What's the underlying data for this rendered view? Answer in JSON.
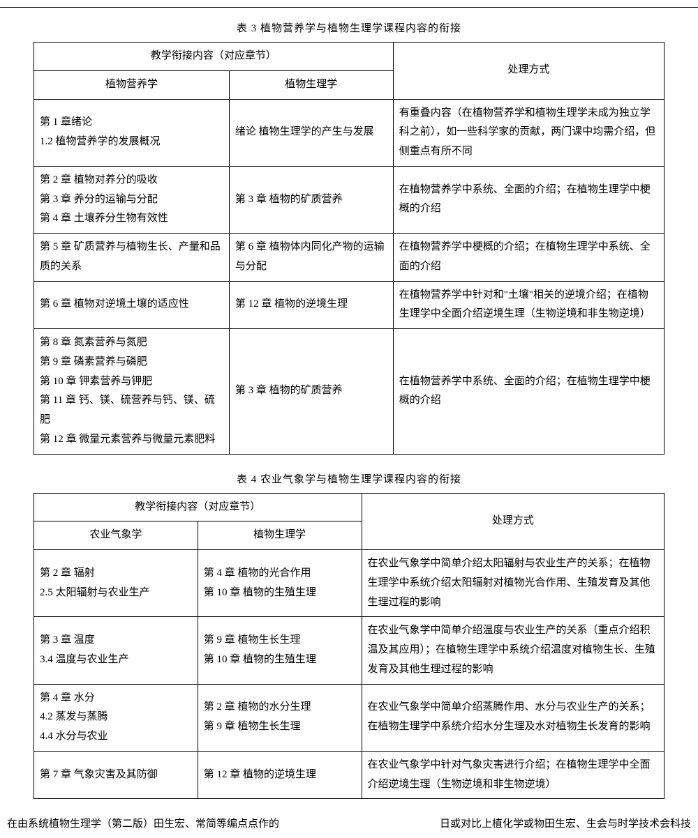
{
  "table3": {
    "title": "表 3  植物营养学与植物生理学课程内容的衔接",
    "header_span": "教学衔接内容（对应章节）",
    "col1_header": "植物营养学",
    "col2_header": "植物生理学",
    "col3_header": "处理方式",
    "col_widths": [
      "31%",
      "26%",
      "43%"
    ],
    "rows": [
      {
        "c1": "第 1 章绪论\n1.2 植物营养学的发展概况",
        "c2": "绪论  植物生理学的产生与发展",
        "c3": "有重叠内容（在植物营养学和植物生理学未成为独立学科之前），如一些科学家的贡献，两门课中均需介绍，但侧重点有所不同"
      },
      {
        "c1": "第 2 章  植物对养分的吸收\n第 3 章  养分的运输与分配\n第 4 章  土壤养分生物有效性",
        "c2": "第 3 章  植物的矿质营养",
        "c3": "在植物营养学中系统、全面的介绍；在植物生理学中梗概的介绍"
      },
      {
        "c1": "第 5 章 矿质营养与植物生长、产量和品质的关系",
        "c2": "第 6 章  植物体内同化产物的运输与分配",
        "c3": "在植物营养学中梗概的介绍；在植物生理学中系统、全面的介绍"
      },
      {
        "c1": "第 6 章  植物对逆境土壤的适应性",
        "c2": "第 12 章  植物的逆境生理",
        "c3": "在植物营养学中针对和\"土壤\"相关的逆境介绍；在植物生理学中全面介绍逆境生理（生物逆境和非生物逆境）"
      },
      {
        "c1": "第 8 章  氮素营养与氮肥\n第 9 章  磷素营养与磷肥\n第 10 章  钾素营养与钾肥\n第 11 章  钙、镁、硫营养与钙、镁、硫肥\n第 12 章  微量元素营养与微量元素肥料",
        "c2": "第 3 章  植物的矿质营养",
        "c3": "在植物营养学中系统、全面的介绍；在植物生理学中梗概的介绍"
      }
    ]
  },
  "table4": {
    "title": "表 4  农业气象学与植物生理学课程内容的衔接",
    "header_span": "教学衔接内容（对应章节）",
    "col1_header": "农业气象学",
    "col2_header": "植物生理学",
    "col3_header": "处理方式",
    "col_widths": [
      "26%",
      "26%",
      "48%"
    ],
    "rows": [
      {
        "c1": "第 2 章  辐射\n2.5 太阳辐射与农业生产",
        "c2": "第 4 章   植物的光合作用\n第 10 章  植物的生殖生理",
        "c3": "在农业气象学中简单介绍太阳辐射与农业生产的关系；在植物生理学中系统介绍太阳辐射对植物光合作用、生殖发育及其他生理过程的影响"
      },
      {
        "c1": "第 3 章  温度\n3.4 温度与农业生产",
        "c2": "第 9 章  植物生长生理\n第 10 章  植物的生殖生理",
        "c3": "在农业气象学中简单介绍温度与农业生产的关系（重点介绍积温及其应用）；在植物生理学中系统介绍温度对植物生长、生殖发育及其他生理过程的影响"
      },
      {
        "c1": "第 4 章  水分\n4.2 蒸发与蒸腾\n4.4 水分与农业",
        "c2": "第 2 章  植物的水分生理\n第 9 章  植物生长生理",
        "c3": "在农业气象学中简单介绍蒸腾作用、水分与农业生产的关系；在植物生理学中系统介绍水分生理及水对植物生长发育的影响"
      },
      {
        "c1": "第 7 章  气象灾害及其防御",
        "c2": "第 12 章  植物的逆境生理",
        "c3": "在农业气象学中针对气象灾害进行介绍；在植物生理学中全面介绍逆境生理（生物逆境和非生物逆境）"
      }
    ]
  },
  "bottom_text_left": "在由系统植物生理学（第二版）田生宏、常简等编点点作的",
  "bottom_text_right": "日或对比上植化学或物田生宏、生会与时学技术会科技"
}
